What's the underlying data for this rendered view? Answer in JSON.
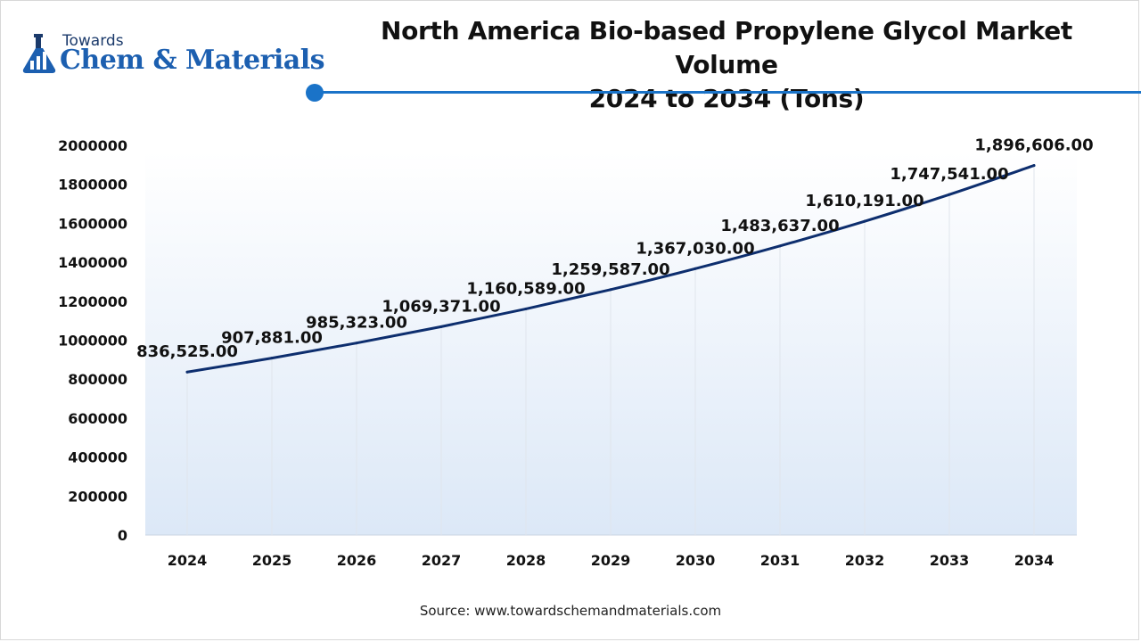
{
  "brand": {
    "small": "Towards",
    "big": "Chem & Materials",
    "icon": "flask-chart-icon"
  },
  "title": {
    "line1": "North America Bio-based Propylene Glycol Market Volume",
    "line2": "2024 to 2034 (Tons)"
  },
  "source": "Source: www.towardschemandmaterials.com",
  "colors": {
    "line": "#0d2e6e",
    "accent": "#1a73c8",
    "gradient_top": "#ffffff",
    "gradient_bottom": "#dce8f7"
  },
  "chart_data": {
    "type": "line",
    "title": "North America Bio-based Propylene Glycol Market Volume 2024 to 2034 (Tons)",
    "xlabel": "",
    "ylabel": "",
    "x": [
      "2024",
      "2025",
      "2026",
      "2027",
      "2028",
      "2029",
      "2030",
      "2031",
      "2032",
      "2033",
      "2034"
    ],
    "values": [
      836525.0,
      907881.0,
      985323.0,
      1069371.0,
      1160589.0,
      1259587.0,
      1367030.0,
      1483637.0,
      1610191.0,
      1747541.0,
      1896606.0
    ],
    "labels": [
      "836,525.00",
      "907,881.00",
      "985,323.00",
      "1,069,371.00",
      "1,160,589.00",
      "1,259,587.00",
      "1,367,030.00",
      "1,483,637.00",
      "1,610,191.00",
      "1,747,541.00",
      "1,896,606.00"
    ],
    "yticks": [
      "0",
      "200000",
      "400000",
      "600000",
      "800000",
      "1000000",
      "1200000",
      "1400000",
      "1600000",
      "1800000",
      "2000000"
    ],
    "ylim": [
      0,
      2000000
    ],
    "grid": "vertical"
  }
}
